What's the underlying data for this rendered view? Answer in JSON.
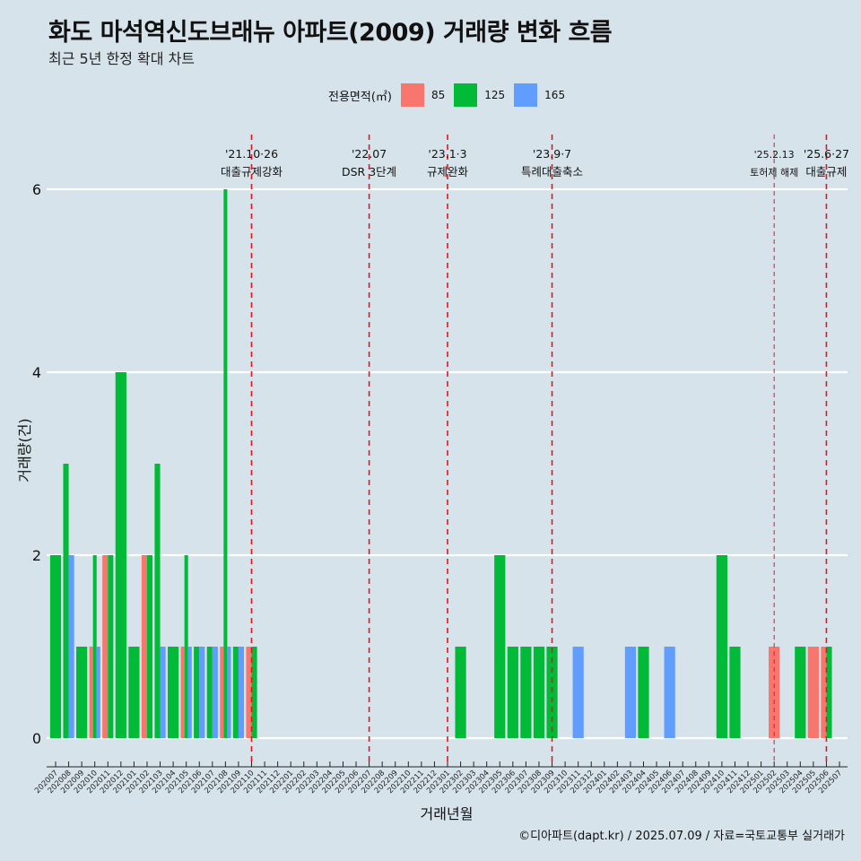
{
  "title": "화도 마석역신도브래뉴 아파트(2009) 거래량 변화 흐름",
  "subtitle": "최근 5년 한정 확대 차트",
  "caption": "©디아파트(dapt.kr) / 2025.07.09 / 자료=국토교통부 실거래가",
  "legend": {
    "title": "전용면적(㎡)",
    "items": [
      {
        "label": "85",
        "color": "#f8766d"
      },
      {
        "label": "125",
        "color": "#00ba38"
      },
      {
        "label": "165",
        "color": "#619cff"
      }
    ]
  },
  "chart_data": {
    "type": "bar",
    "xlabel": "거래년월",
    "ylabel": "거래량(건)",
    "ylim": [
      0,
      6
    ],
    "yticks": [
      0,
      2,
      4,
      6
    ],
    "grid": true,
    "legend_position": "top",
    "categories": [
      "202007",
      "202008",
      "202009",
      "202010",
      "202011",
      "202012",
      "202101",
      "202102",
      "202103",
      "202104",
      "202105",
      "202106",
      "202107",
      "202108",
      "202109",
      "202110",
      "202111",
      "202112",
      "202201",
      "202202",
      "202203",
      "202204",
      "202205",
      "202206",
      "202207",
      "202208",
      "202209",
      "202210",
      "202211",
      "202212",
      "202301",
      "202302",
      "202303",
      "202304",
      "202305",
      "202306",
      "202307",
      "202308",
      "202309",
      "202310",
      "202311",
      "202312",
      "202401",
      "202402",
      "202403",
      "202404",
      "202405",
      "202406",
      "202407",
      "202408",
      "202409",
      "202410",
      "202411",
      "202412",
      "202501",
      "202502",
      "202503",
      "202504",
      "202505",
      "202506",
      "202507"
    ],
    "series": [
      {
        "name": "85",
        "color": "#f8766d",
        "values": [
          0,
          0,
          0,
          1,
          2,
          0,
          0,
          2,
          0,
          0,
          1,
          0,
          0,
          1,
          0,
          1,
          0,
          0,
          0,
          0,
          0,
          0,
          0,
          0,
          0,
          0,
          0,
          0,
          0,
          0,
          0,
          0,
          0,
          0,
          0,
          0,
          0,
          0,
          0,
          0,
          0,
          0,
          0,
          0,
          0,
          0,
          0,
          0,
          0,
          0,
          0,
          0,
          0,
          0,
          0,
          1,
          0,
          0,
          1,
          1,
          0
        ]
      },
      {
        "name": "125",
        "color": "#00ba38",
        "values": [
          2,
          3,
          1,
          2,
          2,
          4,
          1,
          2,
          3,
          1,
          2,
          1,
          1,
          6,
          1,
          1,
          0,
          0,
          0,
          0,
          0,
          0,
          0,
          0,
          0,
          0,
          0,
          0,
          0,
          0,
          0,
          1,
          0,
          0,
          2,
          1,
          1,
          1,
          1,
          0,
          0,
          0,
          0,
          0,
          0,
          1,
          0,
          0,
          0,
          0,
          0,
          2,
          1,
          0,
          0,
          0,
          0,
          1,
          0,
          1,
          0
        ]
      },
      {
        "name": "165",
        "color": "#619cff",
        "values": [
          0,
          2,
          0,
          1,
          0,
          0,
          0,
          0,
          1,
          0,
          1,
          1,
          1,
          1,
          1,
          0,
          0,
          0,
          0,
          0,
          0,
          0,
          0,
          0,
          0,
          0,
          0,
          0,
          0,
          0,
          0,
          0,
          0,
          0,
          0,
          0,
          0,
          0,
          0,
          0,
          1,
          0,
          0,
          0,
          1,
          0,
          0,
          1,
          0,
          0,
          0,
          0,
          0,
          0,
          0,
          0,
          0,
          0,
          0,
          0,
          0
        ]
      }
    ],
    "events": [
      {
        "month": "202110",
        "date": "'21.10·26",
        "label": "대출규제강화"
      },
      {
        "month": "202207",
        "date": "'22.07",
        "label": "DSR 3단계"
      },
      {
        "month": "202301",
        "date": "'23.1·3",
        "label": "규제완화"
      },
      {
        "month": "202309",
        "date": "'23.9·7",
        "label": "특례대출축소"
      },
      {
        "month": "202502",
        "date": "'25.2.13",
        "label": "토허제 해제"
      },
      {
        "month": "202506",
        "date": "'25.6·27",
        "label": "대출규제"
      }
    ]
  }
}
